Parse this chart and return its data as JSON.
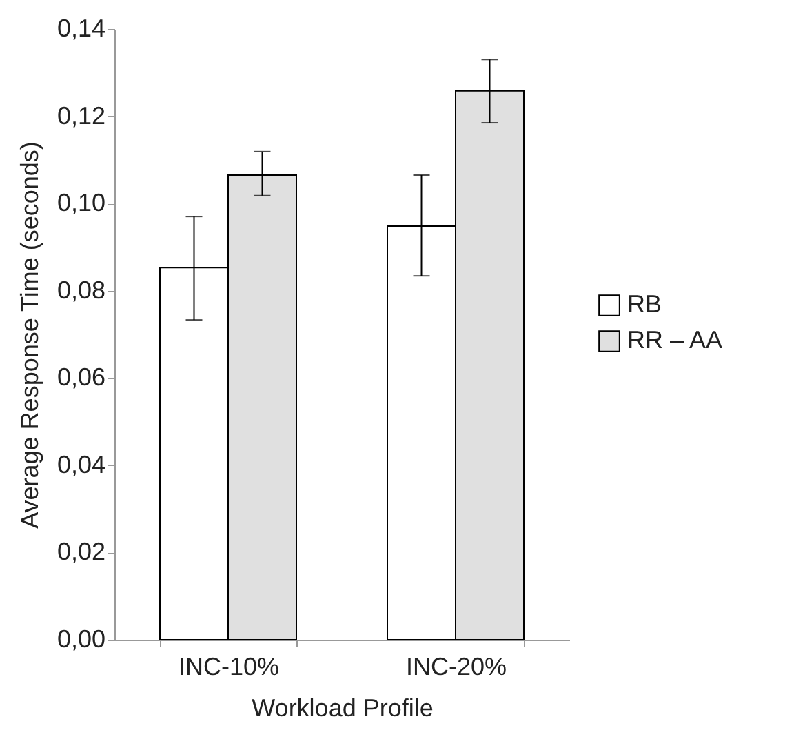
{
  "chart_data": {
    "type": "bar",
    "xlabel": "Workload Profile",
    "ylabel": "Average Response Time (seconds)",
    "categories": [
      "INC-10%",
      "INC-20%"
    ],
    "series": [
      {
        "name": "RB",
        "color": "#ffffff",
        "values": [
          0.0853,
          0.0948
        ],
        "errors": [
          [
            0.0733,
            0.097
          ],
          [
            0.0834,
            0.1065
          ]
        ]
      },
      {
        "name": "RR – AA",
        "color": "#e0e0e0",
        "values": [
          0.1065,
          0.1258
        ],
        "errors": [
          [
            0.1018,
            0.1119
          ],
          [
            0.1185,
            0.133
          ]
        ]
      }
    ],
    "ylim": [
      0,
      0.14
    ],
    "yticks": [
      {
        "value": 0,
        "label": "0,00"
      },
      {
        "value": 0.02,
        "label": "0,02"
      },
      {
        "value": 0.04,
        "label": "0,04"
      },
      {
        "value": 0.06,
        "label": "0,06"
      },
      {
        "value": 0.08,
        "label": "0,08"
      },
      {
        "value": 0.1,
        "label": "0,10"
      },
      {
        "value": 0.12,
        "label": "0,12"
      },
      {
        "value": 0.14,
        "label": "0,14"
      }
    ],
    "legend": "right",
    "grid": false
  }
}
